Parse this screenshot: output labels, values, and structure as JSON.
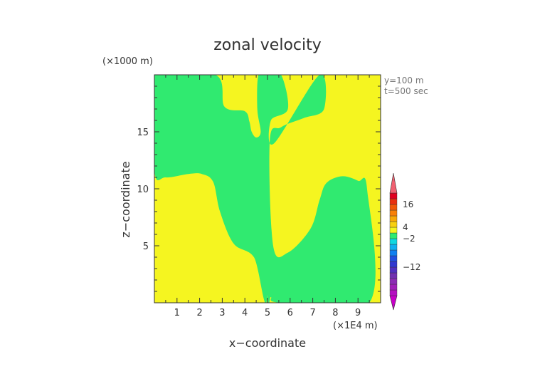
{
  "chart_data": {
    "type": "contour",
    "title": "zonal velocity",
    "y_unit_note": "(×1000 m)",
    "x_unit_note": "(×1E4 m)",
    "info_lines": [
      "y=100 m",
      "t=500 sec"
    ],
    "xlabel": "x−coordinate",
    "ylabel": "z−coordinate",
    "xlim": [
      0,
      10
    ],
    "ylim": [
      0,
      20
    ],
    "x_ticks": [
      1,
      2,
      3,
      4,
      5,
      6,
      7,
      8,
      9
    ],
    "y_ticks": [
      5,
      10,
      15
    ],
    "fill_colors": {
      "positive": "#f5f520",
      "negative": "#30ea70"
    },
    "regions": [
      {
        "name": "negative-main",
        "color": "negative",
        "points": [
          [
            0,
            20
          ],
          [
            2.7,
            20
          ],
          [
            3.1,
            17.2
          ],
          [
            4.0,
            16.8
          ],
          [
            4.2,
            15.9
          ],
          [
            4.3,
            15.0
          ],
          [
            4.5,
            14.5
          ],
          [
            4.7,
            15.0
          ],
          [
            4.55,
            17.0
          ],
          [
            4.6,
            20
          ],
          [
            5.0,
            20
          ],
          [
            5.0,
            0.7
          ],
          [
            4.4,
            4.0
          ],
          [
            3.5,
            5.2
          ],
          [
            2.9,
            8.0
          ],
          [
            2.6,
            10.6
          ],
          [
            2.1,
            11.3
          ],
          [
            1.5,
            11.3
          ],
          [
            0.5,
            11.0
          ],
          [
            0,
            11.6
          ]
        ]
      },
      {
        "name": "negative-right",
        "color": "negative",
        "points": [
          [
            5.0,
            0.7
          ],
          [
            5.0,
            20
          ],
          [
            5.6,
            20
          ],
          [
            5.9,
            17.0
          ],
          [
            5.15,
            16.0
          ],
          [
            5.3,
            14.0
          ],
          [
            7.3,
            20
          ],
          [
            7.5,
            17.0
          ],
          [
            6.6,
            16.2
          ],
          [
            5.6,
            15.4
          ],
          [
            5.1,
            14.2
          ],
          [
            5.25,
            5.0
          ],
          [
            5.9,
            4.4
          ],
          [
            6.9,
            6.5
          ],
          [
            7.3,
            9.0
          ],
          [
            7.6,
            10.5
          ],
          [
            8.3,
            11.1
          ],
          [
            9.0,
            10.7
          ],
          [
            9.4,
            10.0
          ],
          [
            9.5,
            0
          ],
          [
            5.6,
            0
          ],
          [
            5.15,
            0.5
          ]
        ]
      }
    ],
    "colorbar": {
      "colors": [
        "#c800c8",
        "#b410c0",
        "#a020b8",
        "#8c2cb4",
        "#7030b0",
        "#5030c0",
        "#3038d0",
        "#2050e0",
        "#1080f0",
        "#10b0f0",
        "#10d8e0",
        "#30ea70",
        "#f5f520",
        "#f8d010",
        "#f8a808",
        "#f88008",
        "#f05808",
        "#e83010",
        "#e00020",
        "#f06070"
      ],
      "labels": [
        {
          "value": "16",
          "index": 17
        },
        {
          "value": "4",
          "index": 13
        },
        {
          "value": "−2",
          "index": 11
        },
        {
          "value": "−12",
          "index": 6
        }
      ]
    }
  }
}
